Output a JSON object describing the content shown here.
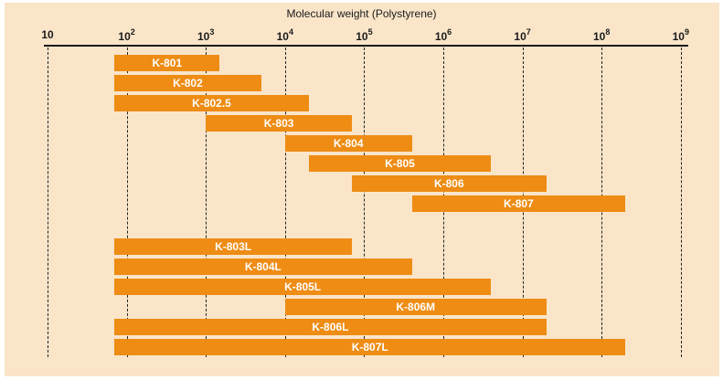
{
  "chart_data": {
    "type": "bar",
    "orientation": "horizontal-range",
    "scale": "log10",
    "title": "Molecular weight (Polystyrene)",
    "axis": {
      "position": "top",
      "min": 10,
      "max": 1000000000,
      "tick_exponents": [
        1,
        2,
        3,
        4,
        5,
        6,
        7,
        8,
        9
      ],
      "tick_labels": [
        "10",
        "10^2",
        "10^3",
        "10^4",
        "10^5",
        "10^6",
        "10^7",
        "10^8",
        "10^9"
      ],
      "gridlines": "dashed-vertical"
    },
    "groups": [
      {
        "name": "individual-pore-size-columns",
        "bars": [
          {
            "label": "K-801",
            "range": [
              70,
              1500
            ]
          },
          {
            "label": "K-802",
            "range": [
              70,
              5000
            ]
          },
          {
            "label": "K-802.5",
            "range": [
              70,
              20000
            ]
          },
          {
            "label": "K-803",
            "range": [
              1000,
              70000
            ]
          },
          {
            "label": "K-804",
            "range": [
              10000,
              400000
            ]
          },
          {
            "label": "K-805",
            "range": [
              20000,
              4000000
            ]
          },
          {
            "label": "K-806",
            "range": [
              70000,
              20000000
            ]
          },
          {
            "label": "K-807",
            "range": [
              400000,
              200000000
            ]
          }
        ]
      },
      {
        "name": "linear-mixed-bed-columns",
        "bars": [
          {
            "label": "K-803L",
            "range": [
              70,
              70000
            ]
          },
          {
            "label": "K-804L",
            "range": [
              70,
              400000
            ]
          },
          {
            "label": "K-805L",
            "range": [
              70,
              4000000
            ]
          },
          {
            "label": "K-806M",
            "range": [
              10000,
              20000000
            ]
          },
          {
            "label": "K-806L",
            "range": [
              70,
              20000000
            ]
          },
          {
            "label": "K-807L",
            "range": [
              70,
              200000000
            ]
          }
        ]
      }
    ],
    "colors": {
      "bar": "#EE8C14",
      "bar_label": "#FFFFFF",
      "background": "#FAE5C9",
      "page": "#FFFFFF",
      "axis": "#1A1A1A"
    }
  }
}
